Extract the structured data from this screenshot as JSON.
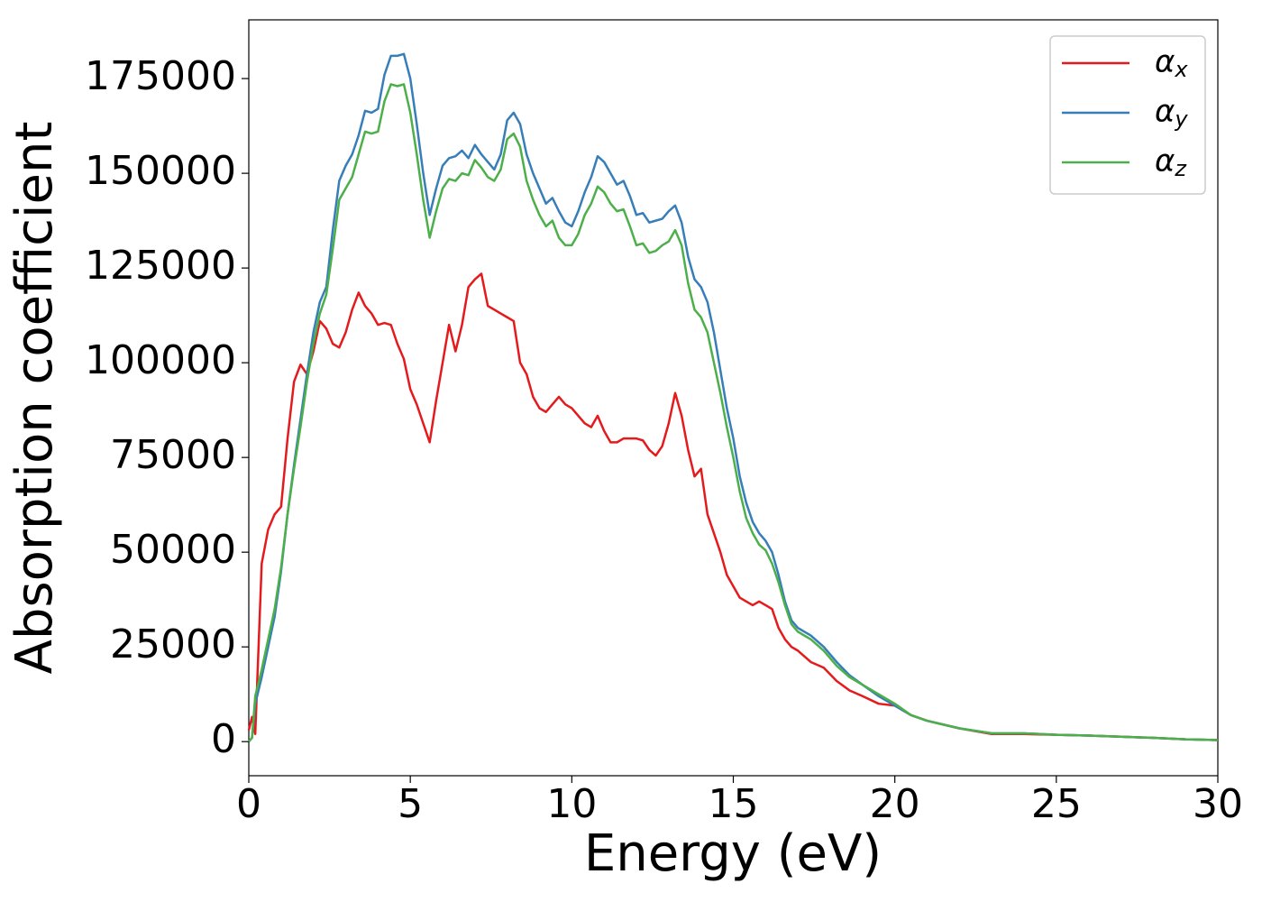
{
  "chart_data": {
    "type": "line",
    "x_label": "Energy (eV)",
    "y_label": "Absorption coefficient",
    "x": [
      0,
      0.1,
      0.2,
      0.4,
      0.6,
      0.8,
      1.0,
      1.2,
      1.4,
      1.6,
      1.8,
      2.0,
      2.2,
      2.4,
      2.6,
      2.8,
      3.0,
      3.2,
      3.4,
      3.6,
      3.8,
      4.0,
      4.2,
      4.4,
      4.6,
      4.8,
      5.0,
      5.2,
      5.4,
      5.6,
      5.8,
      6.0,
      6.2,
      6.4,
      6.6,
      6.8,
      7.0,
      7.2,
      7.4,
      7.6,
      7.8,
      8.0,
      8.2,
      8.4,
      8.6,
      8.8,
      9.0,
      9.2,
      9.4,
      9.6,
      9.8,
      10.0,
      10.2,
      10.4,
      10.6,
      10.8,
      11.0,
      11.2,
      11.4,
      11.6,
      11.8,
      12.0,
      12.2,
      12.4,
      12.6,
      12.8,
      13.0,
      13.2,
      13.4,
      13.6,
      13.8,
      14.0,
      14.2,
      14.4,
      14.6,
      14.8,
      15.0,
      15.2,
      15.4,
      15.6,
      15.8,
      16.0,
      16.2,
      16.4,
      16.6,
      16.8,
      17.0,
      17.4,
      17.8,
      18.2,
      18.6,
      19.0,
      19.5,
      20,
      20.5,
      21,
      22,
      23,
      24,
      25,
      26,
      27,
      28,
      29,
      30
    ],
    "series": [
      {
        "name": "αx",
        "color": "#e41a1c",
        "values": [
          3000,
          6500,
          2000,
          47000,
          56000,
          60000,
          62000,
          80000,
          95000,
          99500,
          97000,
          103000,
          111000,
          109000,
          105000,
          104000,
          108000,
          114000,
          118500,
          115000,
          113000,
          110000,
          110500,
          110000,
          105000,
          101000,
          93000,
          89000,
          84000,
          79000,
          90000,
          100000,
          110000,
          103000,
          110000,
          120000,
          122000,
          123500,
          115000,
          114000,
          113000,
          112000,
          111000,
          100000,
          97000,
          91000,
          88000,
          87000,
          89000,
          91000,
          89000,
          88000,
          86000,
          84000,
          83000,
          86000,
          82000,
          79000,
          79000,
          80000,
          80000,
          80000,
          79500,
          77000,
          75500,
          78000,
          84000,
          92000,
          86000,
          77000,
          70000,
          72000,
          60000,
          55000,
          50000,
          44000,
          41000,
          38000,
          37000,
          36000,
          37000,
          36000,
          35000,
          30000,
          27000,
          25000,
          24000,
          21000,
          19500,
          16000,
          13500,
          12000,
          10000,
          9500,
          7000,
          5500,
          3500,
          2000,
          2000,
          1800,
          1600,
          1300,
          1000,
          600,
          400
        ]
      },
      {
        "name": "αy",
        "color": "#377eb8",
        "values": [
          0,
          1000,
          10000,
          17000,
          25000,
          33000,
          45000,
          60000,
          73000,
          85000,
          97000,
          108000,
          116000,
          120000,
          135000,
          148000,
          152000,
          155000,
          160000,
          166500,
          166000,
          167000,
          176000,
          181000,
          181000,
          181500,
          175000,
          163000,
          150000,
          139000,
          146000,
          152000,
          154000,
          154500,
          156000,
          154000,
          157500,
          155000,
          153000,
          151000,
          155000,
          164000,
          166000,
          163000,
          155000,
          150000,
          146000,
          142000,
          143500,
          140000,
          137000,
          136000,
          140000,
          145000,
          149000,
          154500,
          153000,
          150000,
          147000,
          148000,
          144000,
          139000,
          139500,
          137000,
          137500,
          138000,
          140000,
          141500,
          137000,
          128000,
          122000,
          120000,
          116000,
          108000,
          98000,
          88000,
          80000,
          70000,
          63000,
          58000,
          55000,
          53000,
          50000,
          44000,
          37000,
          32000,
          30000,
          28000,
          25000,
          21000,
          17500,
          15000,
          12000,
          9500,
          7000,
          5500,
          3500,
          2200,
          2200,
          1800,
          1600,
          1300,
          1000,
          600,
          400
        ]
      },
      {
        "name": "αz",
        "color": "#4daf4a",
        "values": [
          0,
          1000,
          12000,
          19000,
          27000,
          35000,
          46000,
          60000,
          72000,
          83000,
          95000,
          105000,
          113000,
          118000,
          130000,
          143000,
          146000,
          149000,
          155000,
          161000,
          160500,
          161000,
          169000,
          173500,
          173000,
          173500,
          166000,
          155000,
          143000,
          133000,
          140000,
          146000,
          148500,
          148000,
          150000,
          149500,
          153500,
          151500,
          149000,
          148000,
          151000,
          159000,
          160500,
          157000,
          148000,
          143000,
          139000,
          136000,
          137500,
          133000,
          131000,
          131000,
          134000,
          139000,
          142000,
          146500,
          145000,
          142000,
          140000,
          140500,
          136000,
          131000,
          131500,
          129000,
          129500,
          131000,
          132000,
          135000,
          131000,
          121000,
          114000,
          112000,
          108000,
          100000,
          92000,
          83000,
          75000,
          66000,
          59000,
          55000,
          52000,
          50500,
          47000,
          42000,
          36000,
          31000,
          29000,
          27000,
          24000,
          20000,
          17000,
          15000,
          12500,
          10000,
          7000,
          5500,
          3500,
          2200,
          2200,
          1800,
          1600,
          1300,
          1000,
          600,
          400
        ]
      }
    ],
    "xlim": [
      0,
      30
    ],
    "xticks": [
      0,
      5,
      10,
      15,
      20,
      25,
      30
    ],
    "ylim": [
      -9000,
      190500
    ],
    "yticks": [
      0,
      25000,
      50000,
      75000,
      100000,
      125000,
      150000,
      175000
    ],
    "grid": false,
    "legend": "upper right"
  }
}
